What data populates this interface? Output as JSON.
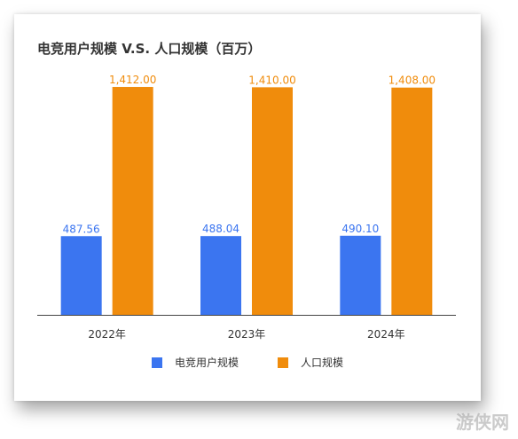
{
  "chart_data": {
    "type": "bar",
    "title": "电竞用户规模 V.S. 人口规模（百万）",
    "categories": [
      "2022年",
      "2023年",
      "2024年"
    ],
    "series": [
      {
        "name": "电竞用户规模",
        "values": [
          487.56,
          488.04,
          490.1
        ],
        "labels": [
          "487.56",
          "488.04",
          "490.10"
        ],
        "color": "#3b75f0"
      },
      {
        "name": "人口规模",
        "values": [
          1412.0,
          1410.0,
          1408.0
        ],
        "labels": [
          "1,412.00",
          "1,410.00",
          "1,408.00"
        ],
        "color": "#f08c0c"
      }
    ],
    "ylim": [
      0,
      1500
    ],
    "grid": false,
    "legend": "bottom"
  },
  "watermark": "游侠网"
}
